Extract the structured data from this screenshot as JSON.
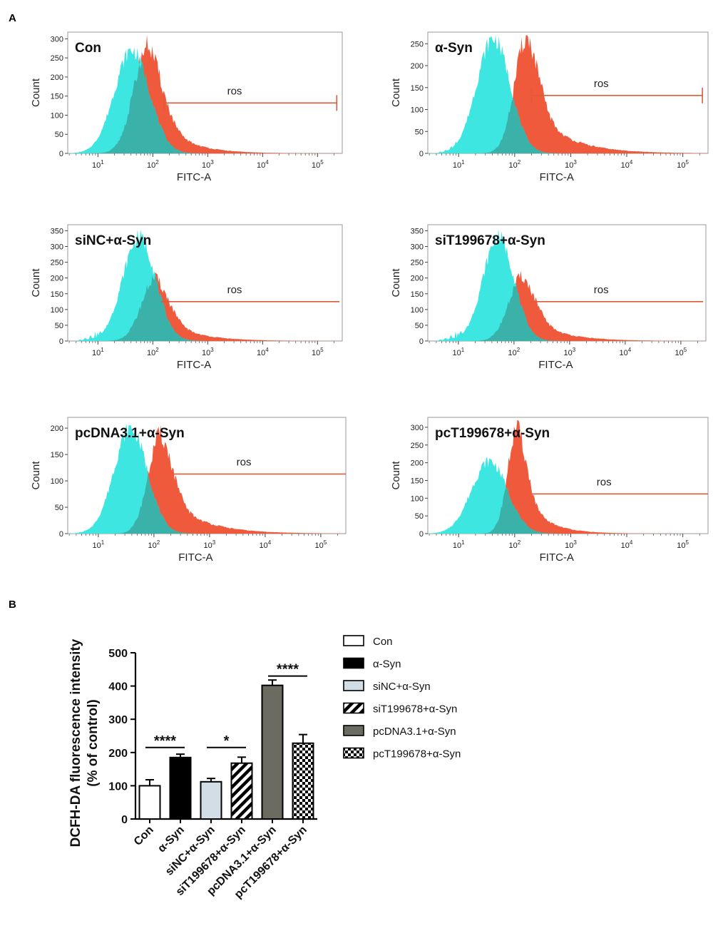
{
  "panel_labels": {
    "a": "A",
    "b": "B"
  },
  "colors": {
    "control": "#3de6e0",
    "treated": "#f05a3c",
    "overlap": "#3aa8a0",
    "gate": "#e05a3a",
    "sicolor": "#d3dde6",
    "pccolor": "#6b6b62"
  },
  "histograms": [
    {
      "id": "con",
      "title": "Con",
      "xlabel": "FITC-A",
      "ylabel": "Count",
      "yticks": [
        0,
        50,
        100,
        150,
        200,
        250,
        300
      ],
      "ymax": 310,
      "xticks": [
        "10^1",
        "10^2",
        "10^3",
        "10^4",
        "10^5"
      ],
      "gate_label": "ros",
      "gate_level": 132,
      "gate_start": 2.2,
      "gate_end": 5.35,
      "gate_caps": true,
      "control_peak_log": 1.62,
      "control_peak": 270,
      "control_width": 0.32,
      "treated_peak_log": 1.92,
      "treated_peak": 285,
      "treated_width": 0.26,
      "treated_tail": 0.5
    },
    {
      "id": "asyn",
      "title": "α-Syn",
      "xlabel": "FITC-A",
      "ylabel": "Count",
      "yticks": [
        0,
        50,
        100,
        150,
        200,
        250
      ],
      "ymax": 270,
      "xticks": [
        "10^1",
        "10^2",
        "10^3",
        "10^4",
        "10^5"
      ],
      "gate_label": "ros",
      "gate_level": 132,
      "gate_start": 2.3,
      "gate_end": 5.35,
      "gate_caps": true,
      "control_peak_log": 1.62,
      "control_peak": 262,
      "control_width": 0.3,
      "treated_peak_log": 2.22,
      "treated_peak": 265,
      "treated_width": 0.22,
      "treated_tail": 0.6
    },
    {
      "id": "sinc",
      "title": "siNC+α-Syn",
      "xlabel": "FITC-A",
      "ylabel": "Count",
      "yticks": [
        0,
        50,
        100,
        150,
        200,
        250,
        300,
        350
      ],
      "ymax": 360,
      "xticks": [
        "10^1",
        "10^2",
        "10^3",
        "10^4",
        "10^5"
      ],
      "gate_label": "ros",
      "gate_level": 125,
      "gate_start": 2.15,
      "gate_end": 5.4,
      "gate_caps": false,
      "control_peak_log": 1.75,
      "control_peak": 330,
      "control_width": 0.3,
      "treated_peak_log": 2.05,
      "treated_peak": 200,
      "treated_width": 0.25,
      "treated_tail": 0.55
    },
    {
      "id": "sit",
      "title": "siT199678+α-Syn",
      "xlabel": "FITC-A",
      "ylabel": "Count",
      "yticks": [
        0,
        50,
        100,
        150,
        200,
        250,
        300,
        350
      ],
      "ymax": 360,
      "xticks": [
        "10^1",
        "10^2",
        "10^3",
        "10^4",
        "10^5"
      ],
      "gate_label": "ros",
      "gate_level": 125,
      "gate_start": 2.3,
      "gate_end": 5.4,
      "gate_caps": false,
      "control_peak_log": 1.72,
      "control_peak": 330,
      "control_width": 0.28,
      "treated_peak_log": 2.15,
      "treated_peak": 205,
      "treated_width": 0.24,
      "treated_tail": 0.55
    },
    {
      "id": "pcdna",
      "title": "pcDNA3.1+α-Syn",
      "xlabel": "FITC-A",
      "ylabel": "Count",
      "yticks": [
        0,
        50,
        100,
        150,
        200
      ],
      "ymax": 215,
      "xticks": [
        "10^1",
        "10^2",
        "10^3",
        "10^4",
        "10^5"
      ],
      "gate_label": "ros",
      "gate_level": 113,
      "gate_start": 2.35,
      "gate_end": 5.45,
      "gate_caps": false,
      "control_peak_log": 1.58,
      "control_peak": 200,
      "control_width": 0.3,
      "treated_peak_log": 2.12,
      "treated_peak": 188,
      "treated_width": 0.22,
      "treated_tail": 0.6
    },
    {
      "id": "pct",
      "title": "pcT199678+α-Syn",
      "xlabel": "FITC-A",
      "ylabel": "Count",
      "yticks": [
        0,
        50,
        100,
        150,
        200,
        250,
        300
      ],
      "ymax": 320,
      "xticks": [
        "10^1",
        "10^2",
        "10^3",
        "10^4",
        "10^5"
      ],
      "gate_label": "ros",
      "gate_level": 112,
      "gate_start": 2.3,
      "gate_end": 5.45,
      "gate_caps": false,
      "control_peak_log": 1.55,
      "control_peak": 205,
      "control_width": 0.32,
      "treated_peak_log": 2.05,
      "treated_peak": 302,
      "treated_width": 0.17,
      "treated_tail": 0.4
    }
  ],
  "chart_data": {
    "type": "bar",
    "title": "",
    "xlabel": "",
    "ylabel_line1": "DCFH-DA fluorescence intensity",
    "ylabel_line2": "(% of control)",
    "ylim": [
      0,
      500
    ],
    "yticks": [
      0,
      100,
      200,
      300,
      400,
      500
    ],
    "categories": [
      "Con",
      "α-Syn",
      "siNC+α-Syn",
      "siT199678+α-Syn",
      "pcDNA3.1+α-Syn",
      "pcT199678+α-Syn"
    ],
    "values": [
      100,
      185,
      112,
      168,
      402,
      228
    ],
    "errors": [
      18,
      10,
      10,
      18,
      16,
      26
    ],
    "fills": [
      "white",
      "black",
      "light",
      "stripes",
      "gray",
      "checker"
    ],
    "significance": [
      {
        "from": 0,
        "to": 1,
        "label": "****",
        "level": 215
      },
      {
        "from": 2,
        "to": 3,
        "label": "*",
        "level": 215
      },
      {
        "from": 4,
        "to": 5,
        "label": "****",
        "level": 430
      }
    ],
    "legend": [
      "Con",
      "α-Syn",
      "siNC+α-Syn",
      "siT199678+α-Syn",
      "pcDNA3.1+α-Syn",
      "pcT199678+α-Syn"
    ]
  }
}
